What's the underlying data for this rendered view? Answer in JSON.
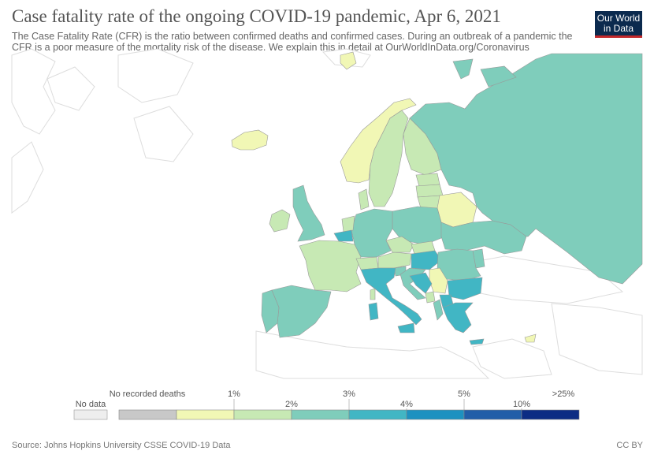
{
  "header": {
    "title": "Case fatality rate of the ongoing COVID-19 pandemic, Apr 6, 2021",
    "subtitle": "The Case Fatality Rate (CFR) is the ratio between confirmed deaths and confirmed cases. During an outbreak of a pandemic the CFR is a poor measure of the mortality risk of the disease. We explain this in detail at OurWorldInData.org/Coronavirus",
    "logo_line1": "Our World",
    "logo_line2": "in Data"
  },
  "legend": {
    "no_data_label": "No data",
    "no_deaths_label": "No recorded deaths",
    "bins": [
      {
        "label": "",
        "color": "#c8c8c8"
      },
      {
        "label": "1%",
        "color": "#f1f7b5"
      },
      {
        "label": "2%",
        "color": "#c7e9b4"
      },
      {
        "label": "3%",
        "color": "#7fcdbb"
      },
      {
        "label": "4%",
        "color": "#41b6c4"
      },
      {
        "label": "5%",
        "color": "#1d91c0"
      },
      {
        "label": "10%",
        "color": "#225ea8"
      },
      {
        "label": ">25%",
        "color": "#0c2c84"
      }
    ],
    "no_data_color": "#eeeeee"
  },
  "countries": [
    {
      "name": "Russia",
      "color": "#7fcdbb"
    },
    {
      "name": "Norway",
      "color": "#f1f7b5"
    },
    {
      "name": "Sweden",
      "color": "#c7e9b4"
    },
    {
      "name": "Finland",
      "color": "#c7e9b4"
    },
    {
      "name": "Iceland",
      "color": "#f1f7b5"
    },
    {
      "name": "United Kingdom",
      "color": "#7fcdbb"
    },
    {
      "name": "Ireland",
      "color": "#c7e9b4"
    },
    {
      "name": "Denmark",
      "color": "#c7e9b4"
    },
    {
      "name": "Estonia",
      "color": "#c7e9b4"
    },
    {
      "name": "Latvia",
      "color": "#c7e9b4"
    },
    {
      "name": "Lithuania",
      "color": "#c7e9b4"
    },
    {
      "name": "Belarus",
      "color": "#f1f7b5"
    },
    {
      "name": "Poland",
      "color": "#7fcdbb"
    },
    {
      "name": "Germany",
      "color": "#7fcdbb"
    },
    {
      "name": "Netherlands",
      "color": "#c7e9b4"
    },
    {
      "name": "Belgium",
      "color": "#41b6c4"
    },
    {
      "name": "France",
      "color": "#c7e9b4"
    },
    {
      "name": "Spain",
      "color": "#7fcdbb"
    },
    {
      "name": "Portugal",
      "color": "#7fcdbb"
    },
    {
      "name": "Italy",
      "color": "#41b6c4"
    },
    {
      "name": "Switzerland",
      "color": "#c7e9b4"
    },
    {
      "name": "Austria",
      "color": "#c7e9b4"
    },
    {
      "name": "Czechia",
      "color": "#c7e9b4"
    },
    {
      "name": "Slovakia",
      "color": "#c7e9b4"
    },
    {
      "name": "Hungary",
      "color": "#41b6c4"
    },
    {
      "name": "Ukraine",
      "color": "#7fcdbb"
    },
    {
      "name": "Romania",
      "color": "#7fcdbb"
    },
    {
      "name": "Moldova",
      "color": "#7fcdbb"
    },
    {
      "name": "Bulgaria",
      "color": "#41b6c4"
    },
    {
      "name": "Serbia",
      "color": "#f1f7b5"
    },
    {
      "name": "Croatia",
      "color": "#7fcdbb"
    },
    {
      "name": "Bosnia and Herzegovina",
      "color": "#41b6c4"
    },
    {
      "name": "Slovenia",
      "color": "#7fcdbb"
    },
    {
      "name": "Greece",
      "color": "#41b6c4"
    },
    {
      "name": "North Macedonia",
      "color": "#41b6c4"
    },
    {
      "name": "Albania",
      "color": "#7fcdbb"
    },
    {
      "name": "Montenegro",
      "color": "#c7e9b4"
    },
    {
      "name": "Sardinia",
      "color": "#41b6c4"
    },
    {
      "name": "Sicily",
      "color": "#41b6c4"
    },
    {
      "name": "Corsica",
      "color": "#c7e9b4"
    },
    {
      "name": "Svalbard",
      "color": "#f1f7b5"
    },
    {
      "name": "Cyprus",
      "color": "#f1f7b5"
    },
    {
      "name": "Crete",
      "color": "#41b6c4"
    },
    {
      "name": "Novaya Zemlya",
      "color": "#7fcdbb"
    }
  ],
  "footer": {
    "source": "Source: Johns Hopkins University CSSE COVID-19 Data",
    "license": "CC BY"
  }
}
